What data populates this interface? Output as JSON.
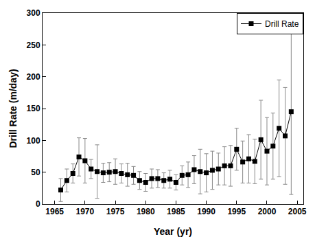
{
  "chart_data": {
    "type": "line",
    "x_label": "Year (yr)",
    "y_label": "Drill Rate (m/day)",
    "x": [
      1966,
      1967,
      1968,
      1969,
      1970,
      1971,
      1972,
      1973,
      1974,
      1975,
      1976,
      1977,
      1978,
      1979,
      1980,
      1981,
      1982,
      1983,
      1984,
      1985,
      1986,
      1987,
      1988,
      1989,
      1990,
      1991,
      1992,
      1993,
      1994,
      1995,
      1996,
      1997,
      1998,
      1999,
      2000,
      2001,
      2002,
      2003,
      2004
    ],
    "series": [
      {
        "name": "Drill Rate",
        "color": "#000000",
        "marker": "square",
        "line_style": "solid",
        "values": [
          22,
          37,
          48,
          74,
          68,
          55,
          51,
          49,
          50,
          51,
          48,
          46,
          45,
          37,
          34,
          40,
          40,
          37,
          39,
          34,
          45,
          46,
          54,
          51,
          49,
          53,
          55,
          60,
          60,
          86,
          66,
          71,
          67,
          101,
          83,
          91,
          119,
          107,
          145
        ],
        "error": [
          18,
          18,
          15,
          30,
          35,
          15,
          42,
          15,
          15,
          20,
          15,
          18,
          14,
          14,
          14,
          15,
          14,
          12,
          14,
          12,
          15,
          20,
          22,
          35,
          30,
          30,
          25,
          30,
          32,
          33,
          33,
          38,
          35,
          62,
          53,
          52,
          76,
          76,
          130
        ]
      }
    ],
    "xlim": [
      1963,
      2006
    ],
    "xticks": [
      1965,
      1970,
      1975,
      1980,
      1985,
      1990,
      1995,
      2000,
      2005
    ],
    "ylim": [
      0,
      300
    ],
    "yticks": [
      0,
      50,
      100,
      150,
      200,
      250,
      300
    ],
    "grid": false,
    "legend": "upper right"
  }
}
